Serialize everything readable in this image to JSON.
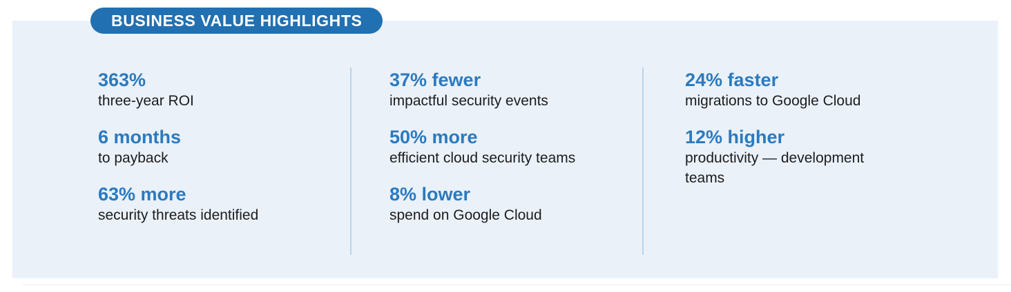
{
  "badge": {
    "label": "BUSINESS VALUE HIGHLIGHTS"
  },
  "colors": {
    "badge_bg": "#2170B2",
    "stat_blue": "#2B7ABF",
    "panel_bg": "#EAF1F9",
    "divider": "#B9D5E9",
    "label_text": "#1C1C1E",
    "page_bg": "#FFFFFF",
    "rule": "#F0EFEF"
  },
  "columns": [
    {
      "items": [
        {
          "value": "363%",
          "label": "three-year ROI"
        },
        {
          "value": "6 months",
          "label": "to payback"
        },
        {
          "value": "63% more",
          "label": "security threats identified"
        }
      ]
    },
    {
      "items": [
        {
          "value": "37% fewer",
          "label": "impactful security events"
        },
        {
          "value": "50% more",
          "label": "efficient cloud security teams"
        },
        {
          "value": "8% lower",
          "label": "spend on Google Cloud"
        }
      ]
    },
    {
      "items": [
        {
          "value": "24% faster",
          "label": "migrations to Google Cloud"
        },
        {
          "value": "12% higher",
          "label": "productivity — development teams"
        }
      ]
    }
  ]
}
